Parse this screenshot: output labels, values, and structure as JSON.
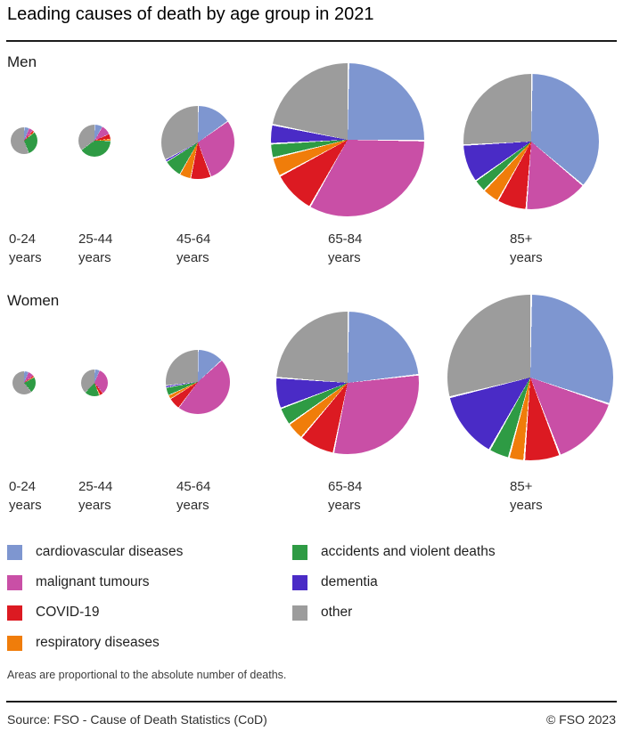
{
  "title": "Leading causes of death by age group in 2021",
  "footnote": "Areas are proportional to the absolute number of deaths.",
  "footer": {
    "source": "Source: FSO - Cause of Death Statistics (CoD)",
    "copyright": "© FSO 2023"
  },
  "causes": [
    {
      "name": "cardiovascular diseases",
      "color": "#7e96d0"
    },
    {
      "name": "malignant tumours",
      "color": "#c94fa6"
    },
    {
      "name": "COVID-19",
      "color": "#dc1a22"
    },
    {
      "name": "respiratory diseases",
      "color": "#f07d0a"
    },
    {
      "name": "accidents and violent deaths",
      "color": "#2e9b44"
    },
    {
      "name": "dementia",
      "color": "#4a2bc6"
    },
    {
      "name": "other",
      "color": "#9c9c9c"
    }
  ],
  "chart_data": {
    "type": "pie",
    "title": "Leading causes of death by age group in 2021",
    "unit": "estimated share of deaths within each age group, %",
    "sizing": "pie area proportional to the absolute number of deaths",
    "categories": [
      "cardiovascular diseases",
      "malignant tumours",
      "COVID-19",
      "respiratory diseases",
      "accidents and violent deaths",
      "dementia",
      "other"
    ],
    "slice_order": "clockwise from 12 o'clock, in category order",
    "groups": [
      {
        "sex": "Men",
        "pies": [
          {
            "age_group": "0-24 years",
            "radius_px": 15,
            "shares_pct": [
              6,
              5,
              2,
              1,
              30,
              0,
              56
            ]
          },
          {
            "age_group": "25-44 years",
            "radius_px": 18,
            "shares_pct": [
              8,
              10,
              5,
              2,
              40,
              0,
              35
            ]
          },
          {
            "age_group": "45-64 years",
            "radius_px": 41,
            "shares_pct": [
              15,
              29,
              9,
              5,
              8,
              1,
              33
            ]
          },
          {
            "age_group": "65-84 years",
            "radius_px": 86,
            "shares_pct": [
              25,
              33,
              9,
              4,
              3,
              4,
              22
            ]
          },
          {
            "age_group": "85+ years",
            "radius_px": 76,
            "shares_pct": [
              36,
              15,
              7,
              4,
              3,
              9,
              26
            ]
          }
        ]
      },
      {
        "sex": "Women",
        "pies": [
          {
            "age_group": "0-24 years",
            "radius_px": 13,
            "shares_pct": [
              6,
              8,
              2,
              1,
              22,
              0,
              61
            ]
          },
          {
            "age_group": "25-44 years",
            "radius_px": 15,
            "shares_pct": [
              6,
              33,
              4,
              1,
              18,
              0,
              38
            ]
          },
          {
            "age_group": "45-64 years",
            "radius_px": 36,
            "shares_pct": [
              13,
              47,
              6,
              2,
              4,
              1,
              27
            ]
          },
          {
            "age_group": "65-84 years",
            "radius_px": 80,
            "shares_pct": [
              23,
              30,
              8,
              4,
              4,
              7,
              24
            ]
          },
          {
            "age_group": "85+ years",
            "radius_px": 93,
            "shares_pct": [
              30,
              14,
              7,
              3,
              4,
              13,
              29
            ]
          }
        ]
      }
    ]
  }
}
